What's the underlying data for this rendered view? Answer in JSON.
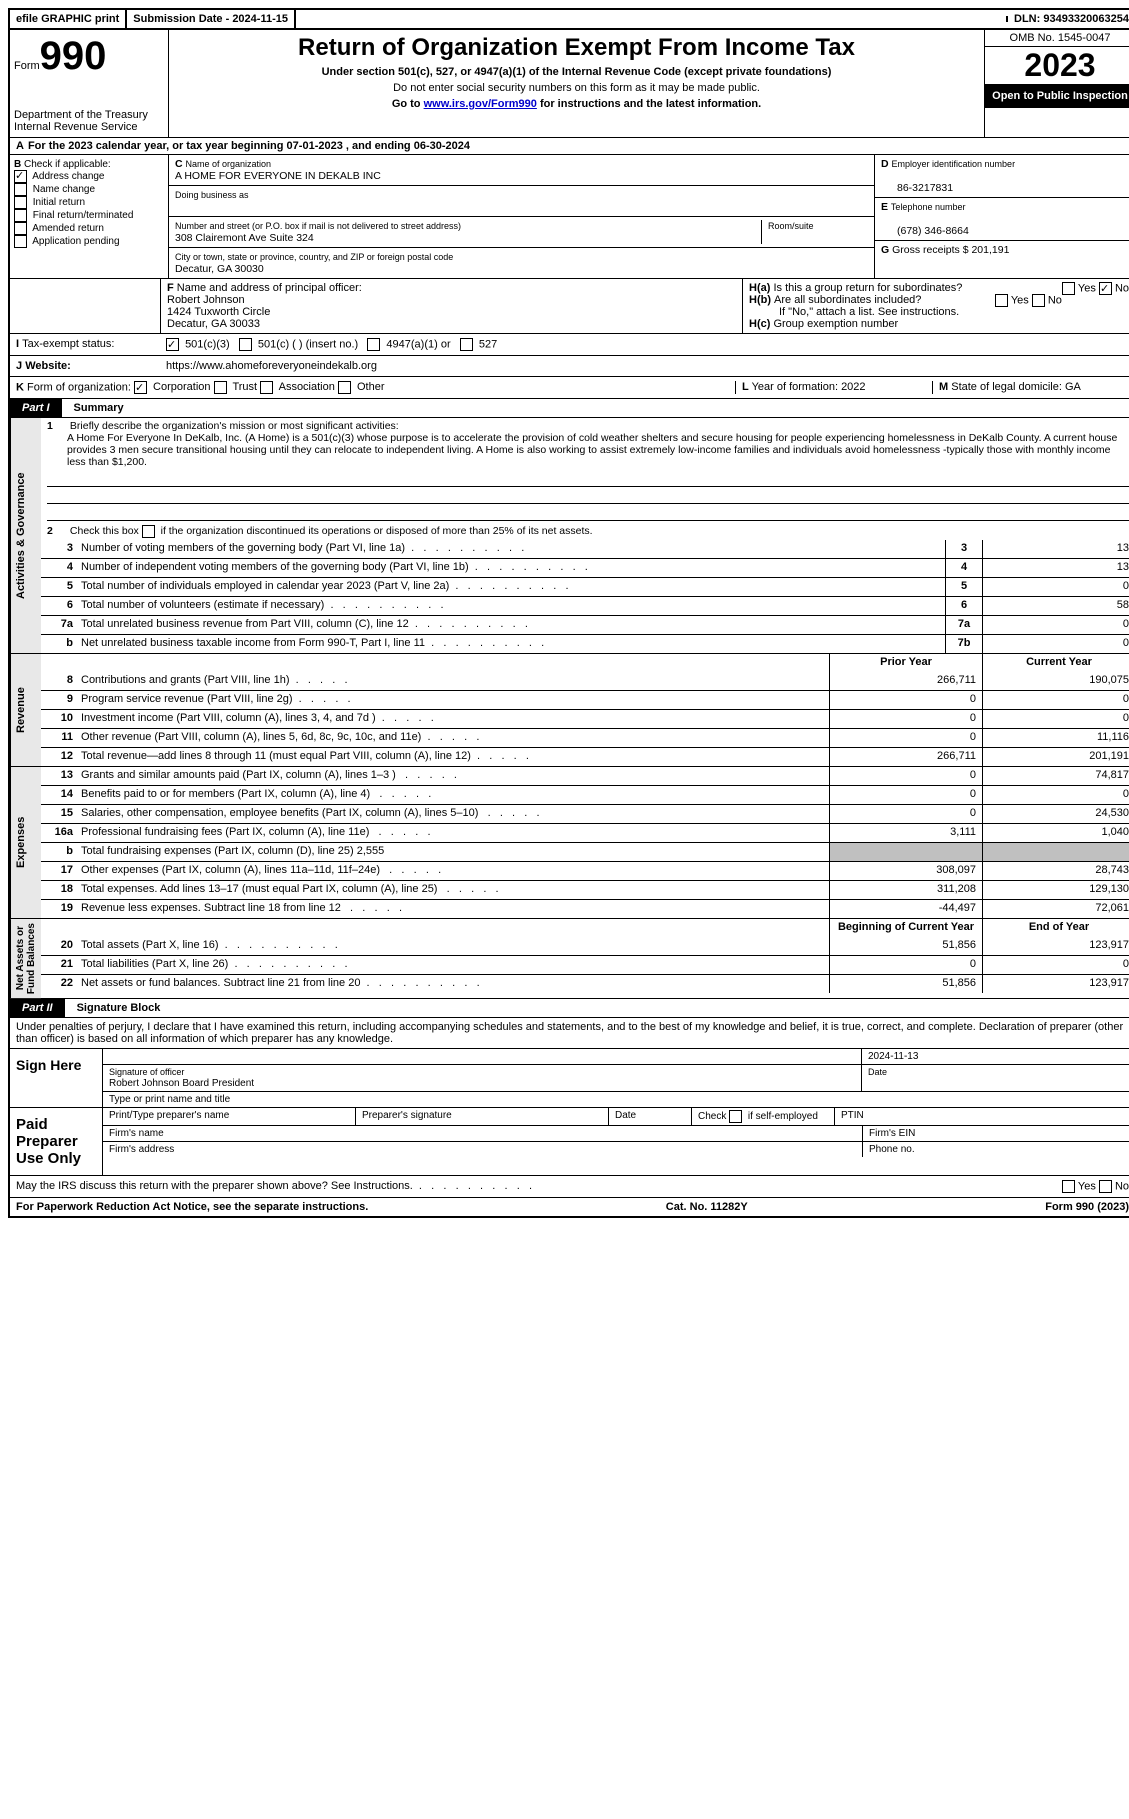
{
  "topbar": {
    "efile": "efile GRAPHIC print",
    "submission_label": "Submission Date - 2024-11-15",
    "dln_label": "DLN: 93493320063254"
  },
  "header": {
    "form_prefix": "Form",
    "form_number": "990",
    "dept": "Department of the Treasury",
    "irs": "Internal Revenue Service",
    "title": "Return of Organization Exempt From Income Tax",
    "subtitle": "Under section 501(c), 527, or 4947(a)(1) of the Internal Revenue Code (except private foundations)",
    "ssn_warning": "Do not enter social security numbers on this form as it may be made public.",
    "goto_prefix": "Go to ",
    "goto_link": "www.irs.gov/Form990",
    "goto_suffix": " for instructions and the latest information.",
    "omb": "OMB No. 1545-0047",
    "year": "2023",
    "inspection": "Open to Public Inspection"
  },
  "section_a": {
    "calendar": "For the 2023 calendar year, or tax year beginning 07-01-2023   , and ending 06-30-2024",
    "b_label": "Check if applicable:",
    "b_options": [
      "Address change",
      "Name change",
      "Initial return",
      "Final return/terminated",
      "Amended return",
      "Application pending"
    ],
    "b_checked": [
      true,
      false,
      false,
      false,
      false,
      false
    ],
    "c_name_label": "Name of organization",
    "c_name": "A HOME FOR EVERYONE IN DEKALB INC",
    "dba_label": "Doing business as",
    "street_label": "Number and street (or P.O. box if mail is not delivered to street address)",
    "room_label": "Room/suite",
    "street": "308 Clairemont Ave Suite 324",
    "city_label": "City or town, state or province, country, and ZIP or foreign postal code",
    "city": "Decatur, GA  30030",
    "d_label": "Employer identification number",
    "d_value": "86-3217831",
    "e_label": "Telephone number",
    "e_value": "(678) 346-8664",
    "g_label": "Gross receipts $",
    "g_value": "201,191",
    "f_label": "Name and address of principal officer:",
    "f_name": "Robert Johnson",
    "f_addr1": "1424 Tuxworth Circle",
    "f_addr2": "Decatur, GA  30033",
    "h_a": "Is this a group return for subordinates?",
    "h_b": "Are all subordinates included?",
    "h_b_note": "If \"No,\" attach a list. See instructions.",
    "h_c": "Group exemption number",
    "i_label": "Tax-exempt status:",
    "i_501c3": "501(c)(3)",
    "i_501c": "501(c) (  ) (insert no.)",
    "i_4947": "4947(a)(1) or",
    "i_527": "527",
    "j_label": "Website:",
    "j_value": "https://www.ahomeforeveryoneindekalb.org",
    "k_label": "Form of organization:",
    "k_opts": [
      "Corporation",
      "Trust",
      "Association",
      "Other"
    ],
    "l_label": "Year of formation:",
    "l_value": "2022",
    "m_label": "State of legal domicile:",
    "m_value": "GA"
  },
  "part1": {
    "badge": "Part I",
    "title": "Summary",
    "line1_label": "Briefly describe the organization's mission or most significant activities:",
    "line1_text": "A Home For Everyone In DeKalb, Inc. (A Home) is a 501(c)(3) whose purpose is to accelerate the provision of cold weather shelters and secure housing for people experiencing homelessness in DeKalb County. A current house provides 3 men secure transitional housing until they can relocate to independent living. A Home is also working to assist extremely low-income families and individuals avoid homelessness -typically those with monthly income less than $1,200.",
    "line2": "Check this box      if the organization discontinued its operations or disposed of more than 25% of its net assets.",
    "lines_gov": [
      {
        "n": "3",
        "t": "Number of voting members of the governing body (Part VI, line 1a)",
        "box": "3",
        "v": "13"
      },
      {
        "n": "4",
        "t": "Number of independent voting members of the governing body (Part VI, line 1b)",
        "box": "4",
        "v": "13"
      },
      {
        "n": "5",
        "t": "Total number of individuals employed in calendar year 2023 (Part V, line 2a)",
        "box": "5",
        "v": "0"
      },
      {
        "n": "6",
        "t": "Total number of volunteers (estimate if necessary)",
        "box": "6",
        "v": "58"
      },
      {
        "n": "7a",
        "t": "Total unrelated business revenue from Part VIII, column (C), line 12",
        "box": "7a",
        "v": "0"
      },
      {
        "n": "b",
        "t": "Net unrelated business taxable income from Form 990-T, Part I, line 11",
        "box": "7b",
        "v": "0"
      }
    ],
    "col_prior": "Prior Year",
    "col_current": "Current Year",
    "revenue_label": "Revenue",
    "revenue": [
      {
        "n": "8",
        "t": "Contributions and grants (Part VIII, line 1h)",
        "p": "266,711",
        "c": "190,075"
      },
      {
        "n": "9",
        "t": "Program service revenue (Part VIII, line 2g)",
        "p": "0",
        "c": "0"
      },
      {
        "n": "10",
        "t": "Investment income (Part VIII, column (A), lines 3, 4, and 7d )",
        "p": "0",
        "c": "0"
      },
      {
        "n": "11",
        "t": "Other revenue (Part VIII, column (A), lines 5, 6d, 8c, 9c, 10c, and 11e)",
        "p": "0",
        "c": "11,116"
      },
      {
        "n": "12",
        "t": "Total revenue—add lines 8 through 11 (must equal Part VIII, column (A), line 12)",
        "p": "266,711",
        "c": "201,191"
      }
    ],
    "expenses_label": "Expenses",
    "expenses": [
      {
        "n": "13",
        "t": "Grants and similar amounts paid (Part IX, column (A), lines 1–3 )",
        "p": "0",
        "c": "74,817"
      },
      {
        "n": "14",
        "t": "Benefits paid to or for members (Part IX, column (A), line 4)",
        "p": "0",
        "c": "0"
      },
      {
        "n": "15",
        "t": "Salaries, other compensation, employee benefits (Part IX, column (A), lines 5–10)",
        "p": "0",
        "c": "24,530"
      },
      {
        "n": "16a",
        "t": "Professional fundraising fees (Part IX, column (A), line 11e)",
        "p": "3,111",
        "c": "1,040"
      },
      {
        "n": "b",
        "t": "Total fundraising expenses (Part IX, column (D), line 25) 2,555",
        "p": "gray",
        "c": "gray"
      },
      {
        "n": "17",
        "t": "Other expenses (Part IX, column (A), lines 11a–11d, 11f–24e)",
        "p": "308,097",
        "c": "28,743"
      },
      {
        "n": "18",
        "t": "Total expenses. Add lines 13–17 (must equal Part IX, column (A), line 25)",
        "p": "311,208",
        "c": "129,130"
      },
      {
        "n": "19",
        "t": "Revenue less expenses. Subtract line 18 from line 12",
        "p": "-44,497",
        "c": "72,061"
      }
    ],
    "net_label": "Net Assets or Fund Balances",
    "col_begin": "Beginning of Current Year",
    "col_end": "End of Year",
    "net": [
      {
        "n": "20",
        "t": "Total assets (Part X, line 16)",
        "p": "51,856",
        "c": "123,917"
      },
      {
        "n": "21",
        "t": "Total liabilities (Part X, line 26)",
        "p": "0",
        "c": "0"
      },
      {
        "n": "22",
        "t": "Net assets or fund balances. Subtract line 21 from line 20",
        "p": "51,856",
        "c": "123,917"
      }
    ]
  },
  "part2": {
    "badge": "Part II",
    "title": "Signature Block",
    "declaration": "Under penalties of perjury, I declare that I have examined this return, including accompanying schedules and statements, and to the best of my knowledge and belief, it is true, correct, and complete. Declaration of preparer (other than officer) is based on all information of which preparer has any knowledge.",
    "sign_here": "Sign Here",
    "sig_date": "2024-11-13",
    "sig_officer_label": "Signature of officer",
    "sig_date_label": "Date",
    "officer_name": "Robert Johnson  Board President",
    "type_label": "Type or print name and title",
    "paid_prep": "Paid Preparer Use Only",
    "prep_name_label": "Print/Type preparer's name",
    "prep_sig_label": "Preparer's signature",
    "date_label": "Date",
    "check_self": "Check       if self-employed",
    "ptin_label": "PTIN",
    "firm_name_label": "Firm's name",
    "firm_ein_label": "Firm's EIN",
    "firm_addr_label": "Firm's address",
    "phone_label": "Phone no.",
    "may_irs": "May the IRS discuss this return with the preparer shown above? See Instructions."
  },
  "footer": {
    "paperwork": "For Paperwork Reduction Act Notice, see the separate instructions.",
    "cat": "Cat. No. 11282Y",
    "form": "Form 990 (2023)"
  }
}
